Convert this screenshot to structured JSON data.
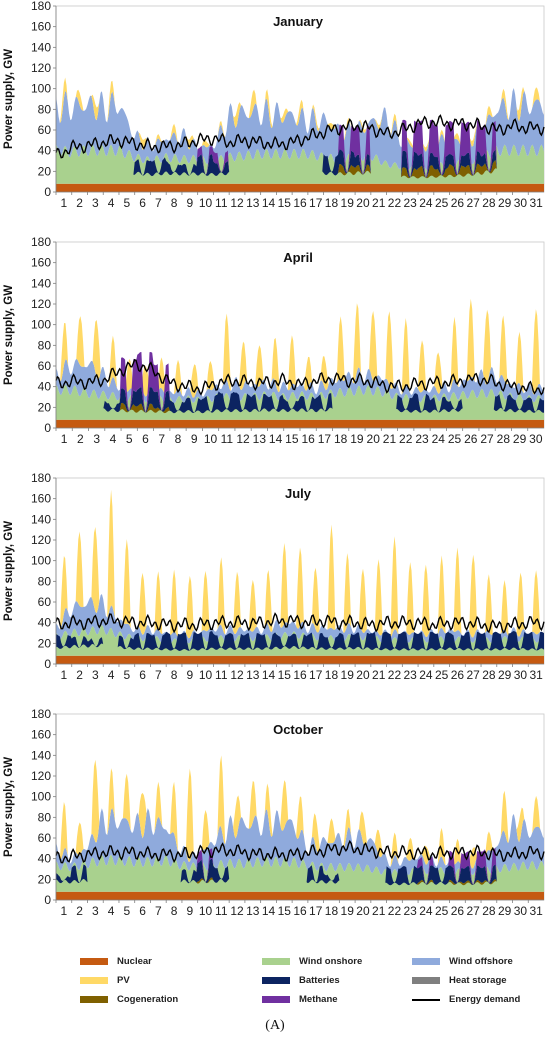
{
  "colors": {
    "nuclear": "#c55a11",
    "wind_onshore": "#a9d18e",
    "wind_offshore": "#8faadc",
    "pv": "#ffd966",
    "batteries": "#0c2461",
    "heat_storage": "#7f7f7f",
    "cogeneration": "#7f6000",
    "methane": "#7030a0",
    "energy_demand": "#000000"
  },
  "legend": [
    {
      "key": "nuclear",
      "label": "Nuclear",
      "kind": "box"
    },
    {
      "key": "wind_onshore",
      "label": "Wind onshore",
      "kind": "box"
    },
    {
      "key": "wind_offshore",
      "label": "Wind offshore",
      "kind": "box"
    },
    {
      "key": "pv",
      "label": "PV",
      "kind": "box"
    },
    {
      "key": "batteries",
      "label": "Batteries",
      "kind": "box"
    },
    {
      "key": "heat_storage",
      "label": "Heat storage",
      "kind": "box"
    },
    {
      "key": "cogeneration",
      "label": "Cogeneration",
      "kind": "box"
    },
    {
      "key": "methane",
      "label": "Methane",
      "kind": "box"
    },
    {
      "key": "energy_demand",
      "label": "Energy demand",
      "kind": "line"
    }
  ],
  "caption": "(A)",
  "chart_data": [
    {
      "type": "area",
      "title": "January",
      "ylabel": "Power supply, GW",
      "ylim": [
        0,
        180
      ],
      "yticks": [
        0,
        20,
        40,
        60,
        80,
        100,
        120,
        140,
        160,
        180
      ],
      "days": 31,
      "grid": false,
      "series": {
        "nuclear": 8,
        "wind_onshore": [
          38,
          36,
          38,
          38,
          38,
          30,
          26,
          30,
          28,
          28,
          26,
          30,
          32,
          34,
          34,
          34,
          34,
          30,
          28,
          30,
          32,
          22,
          20,
          18,
          20,
          22,
          24,
          30,
          38,
          38,
          38
        ],
        "wind_offshore": [
          52,
          55,
          55,
          52,
          56,
          25,
          18,
          22,
          28,
          14,
          18,
          48,
          52,
          50,
          48,
          46,
          40,
          45,
          34,
          30,
          40,
          55,
          30,
          25,
          30,
          28,
          26,
          30,
          50,
          55,
          55
        ],
        "pv_peak": [
          15,
          12,
          14,
          12,
          0,
          10,
          4,
          8,
          10,
          6,
          4,
          14,
          18,
          12,
          8,
          10,
          6,
          6,
          4,
          4,
          4,
          6,
          4,
          4,
          4,
          6,
          6,
          8,
          10,
          14,
          12
        ],
        "batteries": [
          0,
          0,
          0,
          0,
          0,
          12,
          14,
          10,
          8,
          18,
          12,
          0,
          0,
          0,
          0,
          0,
          0,
          18,
          14,
          10,
          0,
          0,
          16,
          12,
          12,
          10,
          12,
          10,
          0,
          0,
          0
        ],
        "methane": [
          0,
          0,
          0,
          0,
          0,
          0,
          0,
          0,
          0,
          8,
          10,
          0,
          0,
          0,
          0,
          0,
          0,
          0,
          24,
          28,
          0,
          0,
          30,
          32,
          30,
          32,
          30,
          28,
          0,
          0,
          0
        ],
        "cogeneration": [
          0,
          0,
          0,
          0,
          0,
          0,
          0,
          0,
          0,
          0,
          0,
          0,
          0,
          0,
          0,
          0,
          0,
          0,
          8,
          6,
          0,
          0,
          8,
          10,
          8,
          10,
          8,
          8,
          0,
          0,
          0
        ],
        "demand": [
          35,
          43,
          45,
          48,
          50,
          47,
          44,
          44,
          46,
          50,
          52,
          48,
          50,
          48,
          46,
          48,
          53,
          58,
          62,
          64,
          62,
          56,
          60,
          66,
          68,
          66,
          66,
          64,
          60,
          64,
          62
        ]
      }
    },
    {
      "type": "area",
      "title": "April",
      "ylabel": "Power supply, GW",
      "ylim": [
        0,
        180
      ],
      "yticks": [
        0,
        20,
        40,
        60,
        80,
        100,
        120,
        140,
        160,
        180
      ],
      "days": 30,
      "grid": false,
      "series": {
        "nuclear": 8,
        "wind_onshore": [
          34,
          34,
          30,
          28,
          26,
          24,
          24,
          22,
          24,
          22,
          26,
          26,
          26,
          28,
          26,
          28,
          26,
          30,
          32,
          34,
          32,
          26,
          24,
          24,
          26,
          28,
          30,
          30,
          26,
          24
        ],
        "wind_offshore": [
          18,
          30,
          35,
          22,
          10,
          8,
          10,
          10,
          8,
          8,
          14,
          16,
          14,
          14,
          12,
          12,
          10,
          14,
          18,
          18,
          16,
          10,
          10,
          10,
          12,
          16,
          20,
          22,
          14,
          12
        ],
        "pv_peak": [
          40,
          48,
          56,
          40,
          30,
          30,
          30,
          28,
          32,
          28,
          64,
          44,
          40,
          44,
          48,
          30,
          30,
          60,
          66,
          68,
          72,
          64,
          50,
          40,
          60,
          76,
          72,
          60,
          50,
          80
        ],
        "batteries": [
          0,
          0,
          0,
          8,
          14,
          16,
          16,
          10,
          12,
          14,
          18,
          16,
          14,
          14,
          10,
          12,
          14,
          0,
          0,
          0,
          0,
          14,
          16,
          12,
          10,
          0,
          0,
          14,
          12,
          12
        ],
        "methane": [
          0,
          0,
          0,
          0,
          30,
          34,
          26,
          0,
          0,
          0,
          0,
          0,
          0,
          0,
          0,
          0,
          0,
          0,
          0,
          0,
          0,
          0,
          0,
          0,
          0,
          0,
          0,
          0,
          0,
          0
        ],
        "cogeneration": [
          0,
          0,
          0,
          0,
          6,
          6,
          4,
          0,
          0,
          0,
          0,
          0,
          0,
          0,
          0,
          0,
          0,
          0,
          0,
          0,
          0,
          0,
          0,
          0,
          0,
          0,
          0,
          0,
          0,
          0
        ],
        "demand": [
          43,
          45,
          44,
          47,
          56,
          62,
          55,
          44,
          40,
          38,
          44,
          46,
          44,
          44,
          46,
          42,
          46,
          48,
          46,
          46,
          42,
          40,
          42,
          44,
          44,
          46,
          48,
          44,
          40,
          38
        ]
      }
    },
    {
      "type": "area",
      "title": "July",
      "ylabel": "Power supply, GW",
      "ylim": [
        0,
        180
      ],
      "yticks": [
        0,
        20,
        40,
        60,
        80,
        100,
        120,
        140,
        160,
        180
      ],
      "days": 31,
      "grid": false,
      "series": {
        "nuclear": 8,
        "wind_onshore": [
          22,
          26,
          28,
          30,
          24,
          20,
          20,
          18,
          16,
          18,
          20,
          20,
          20,
          20,
          22,
          24,
          22,
          20,
          20,
          22,
          20,
          18,
          18,
          18,
          18,
          20,
          18,
          18,
          18,
          20,
          18
        ],
        "wind_offshore": [
          10,
          30,
          34,
          30,
          18,
          10,
          10,
          8,
          8,
          8,
          12,
          10,
          10,
          10,
          14,
          14,
          10,
          12,
          12,
          10,
          8,
          8,
          8,
          8,
          8,
          10,
          8,
          8,
          8,
          8,
          8
        ],
        "pv_peak": [
          56,
          72,
          82,
          112,
          82,
          60,
          56,
          60,
          60,
          58,
          66,
          58,
          50,
          54,
          78,
          76,
          60,
          100,
          70,
          62,
          72,
          90,
          70,
          70,
          70,
          80,
          80,
          56,
          48,
          60,
          62
        ],
        "batteries": [
          12,
          8,
          6,
          0,
          10,
          14,
          14,
          16,
          16,
          16,
          14,
          14,
          14,
          14,
          12,
          12,
          14,
          12,
          14,
          14,
          16,
          16,
          16,
          16,
          16,
          14,
          16,
          16,
          16,
          16,
          16
        ],
        "methane": [
          0,
          0,
          0,
          0,
          0,
          0,
          0,
          0,
          0,
          0,
          0,
          0,
          0,
          0,
          0,
          0,
          0,
          0,
          0,
          0,
          0,
          0,
          0,
          0,
          0,
          0,
          0,
          0,
          0,
          0,
          0
        ],
        "cogeneration": [
          0,
          0,
          0,
          0,
          0,
          0,
          0,
          0,
          0,
          0,
          0,
          0,
          0,
          0,
          0,
          0,
          0,
          0,
          0,
          0,
          0,
          0,
          0,
          0,
          0,
          0,
          0,
          0,
          0,
          0,
          0
        ],
        "demand": [
          38,
          40,
          40,
          42,
          42,
          40,
          40,
          38,
          38,
          38,
          40,
          40,
          40,
          40,
          42,
          42,
          40,
          42,
          40,
          40,
          38,
          40,
          40,
          40,
          38,
          40,
          40,
          38,
          36,
          38,
          40
        ]
      }
    },
    {
      "type": "area",
      "title": "October",
      "ylabel": "Power supply, GW",
      "ylim": [
        0,
        180
      ],
      "yticks": [
        0,
        20,
        40,
        60,
        80,
        100,
        120,
        140,
        160,
        180
      ],
      "days": 31,
      "grid": false,
      "series": {
        "nuclear": 8,
        "wind_onshore": [
          30,
          28,
          32,
          36,
          36,
          34,
          34,
          36,
          30,
          28,
          30,
          32,
          32,
          34,
          34,
          34,
          30,
          28,
          28,
          28,
          26,
          22,
          22,
          24,
          24,
          24,
          22,
          24,
          26,
          28,
          30
        ],
        "wind_offshore": [
          20,
          10,
          20,
          48,
          48,
          44,
          48,
          40,
          16,
          10,
          30,
          42,
          48,
          46,
          48,
          46,
          22,
          30,
          34,
          36,
          34,
          14,
          14,
          16,
          12,
          10,
          10,
          10,
          30,
          48,
          42
        ],
        "pv_peak": [
          46,
          32,
          80,
          40,
          44,
          44,
          34,
          50,
          90,
          38,
          70,
          36,
          40,
          30,
          46,
          36,
          30,
          24,
          20,
          28,
          24,
          22,
          22,
          18,
          28,
          22,
          20,
          18,
          40,
          24,
          30
        ],
        "batteries": [
          6,
          14,
          0,
          0,
          0,
          0,
          0,
          0,
          10,
          18,
          14,
          0,
          0,
          0,
          0,
          0,
          14,
          8,
          0,
          0,
          0,
          16,
          16,
          14,
          16,
          14,
          14,
          14,
          0,
          0,
          0
        ],
        "methane": [
          0,
          0,
          0,
          0,
          0,
          0,
          0,
          0,
          0,
          10,
          0,
          0,
          0,
          0,
          0,
          0,
          0,
          0,
          0,
          0,
          0,
          0,
          0,
          8,
          0,
          14,
          14,
          16,
          0,
          0,
          0
        ],
        "cogeneration": [
          0,
          0,
          0,
          0,
          0,
          0,
          0,
          0,
          0,
          2,
          0,
          0,
          0,
          0,
          0,
          0,
          0,
          0,
          0,
          0,
          0,
          0,
          0,
          2,
          0,
          2,
          2,
          2,
          0,
          0,
          0
        ],
        "demand": [
          40,
          42,
          44,
          46,
          46,
          46,
          44,
          44,
          44,
          46,
          48,
          48,
          46,
          44,
          44,
          44,
          46,
          48,
          50,
          50,
          48,
          46,
          46,
          46,
          44,
          46,
          46,
          46,
          44,
          44,
          46
        ]
      }
    }
  ]
}
